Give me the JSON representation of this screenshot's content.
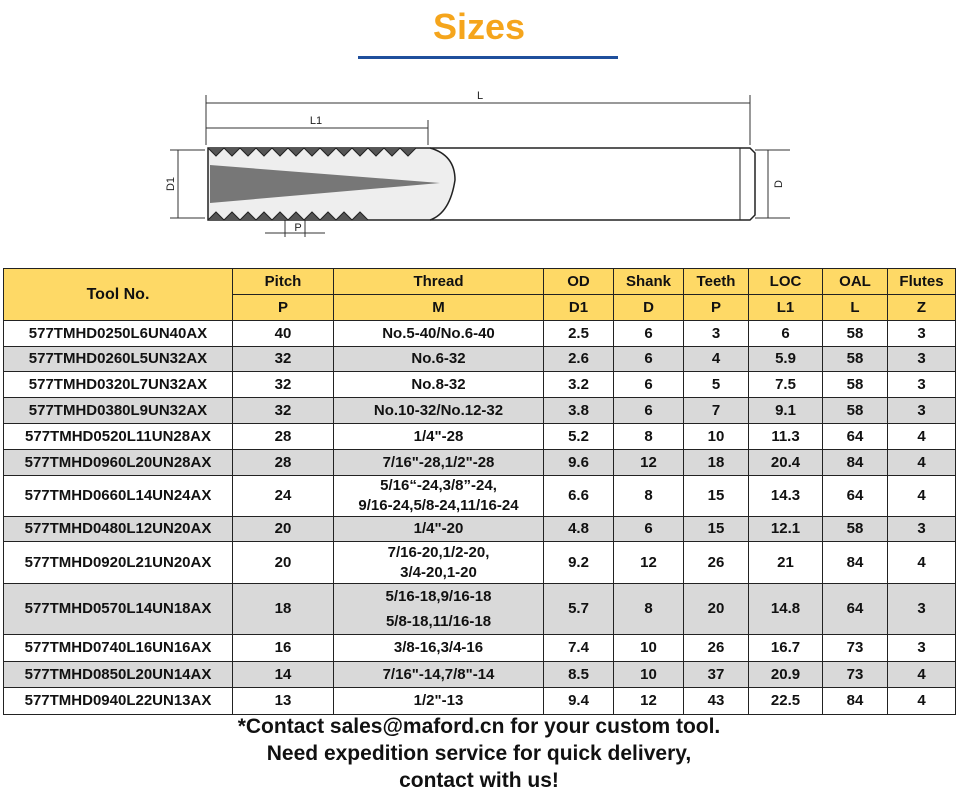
{
  "header": {
    "title": "Sizes"
  },
  "diagram": {
    "labels": {
      "L": "L",
      "L1": "L1",
      "D1": "D1",
      "D": "D",
      "P": "P"
    }
  },
  "table": {
    "columns": [
      {
        "label": "Tool No."
      },
      {
        "label": "Pitch",
        "symbol": "P"
      },
      {
        "label": "Thread",
        "symbol": "M"
      },
      {
        "label": "OD",
        "symbol": "D1"
      },
      {
        "label": "Shank",
        "symbol": "D"
      },
      {
        "label": "Teeth",
        "symbol": "P"
      },
      {
        "label": "LOC",
        "symbol": "L1"
      },
      {
        "label": "OAL",
        "symbol": "L"
      },
      {
        "label": "Flutes",
        "symbol": "Z"
      }
    ],
    "rows": [
      [
        "577TMHD0250L6UN40AX",
        "40",
        [
          "No.5-40/No.6-40"
        ],
        "2.5",
        "6",
        "3",
        "6",
        "58",
        "3"
      ],
      [
        "577TMHD0260L5UN32AX",
        "32",
        [
          "No.6-32"
        ],
        "2.6",
        "6",
        "4",
        "5.9",
        "58",
        "3"
      ],
      [
        "577TMHD0320L7UN32AX",
        "32",
        [
          "No.8-32"
        ],
        "3.2",
        "6",
        "5",
        "7.5",
        "58",
        "3"
      ],
      [
        "577TMHD0380L9UN32AX",
        "32",
        [
          "No.10-32/No.12-32"
        ],
        "3.8",
        "6",
        "7",
        "9.1",
        "58",
        "3"
      ],
      [
        "577TMHD0520L11UN28AX",
        "28",
        [
          "1/4\"-28"
        ],
        "5.2",
        "8",
        "10",
        "11.3",
        "64",
        "4"
      ],
      [
        "577TMHD0960L20UN28AX",
        "28",
        [
          "7/16\"-28,1/2\"-28"
        ],
        "9.6",
        "12",
        "18",
        "20.4",
        "84",
        "4"
      ],
      [
        "577TMHD0660L14UN24AX",
        "24",
        [
          "5/16“-24,3/8”-24,",
          "9/16-24,5/8-24,11/16-24"
        ],
        "6.6",
        "8",
        "15",
        "14.3",
        "64",
        "4"
      ],
      [
        "577TMHD0480L12UN20AX",
        "20",
        [
          "1/4\"-20"
        ],
        "4.8",
        "6",
        "15",
        "12.1",
        "58",
        "3"
      ],
      [
        "577TMHD0920L21UN20AX",
        "20",
        [
          "7/16-20,1/2-20,",
          "3/4-20,1-20"
        ],
        "9.2",
        "12",
        "26",
        "21",
        "84",
        "4"
      ],
      [
        "577TMHD0570L14UN18AX",
        "18",
        [
          "5/16-18,9/16-18",
          "5/8-18,11/16-18"
        ],
        "5.7",
        "8",
        "20",
        "14.8",
        "64",
        "3"
      ],
      [
        "577TMHD0740L16UN16AX",
        "16",
        [
          "3/8-16,3/4-16"
        ],
        "7.4",
        "10",
        "26",
        "16.7",
        "73",
        "3"
      ],
      [
        "577TMHD0850L20UN14AX",
        "14",
        [
          "7/16\"-14,7/8\"-14"
        ],
        "8.5",
        "10",
        "37",
        "20.9",
        "73",
        "4"
      ],
      [
        "577TMHD0940L22UN13AX",
        "13",
        [
          "1/2\"-13"
        ],
        "9.4",
        "12",
        "43",
        "22.5",
        "84",
        "4"
      ]
    ]
  },
  "footer": {
    "lines": [
      "*Contact sales@maford.cn for your custom tool.",
      "Need expedition service for quick delivery,",
      "contact with us!"
    ]
  }
}
